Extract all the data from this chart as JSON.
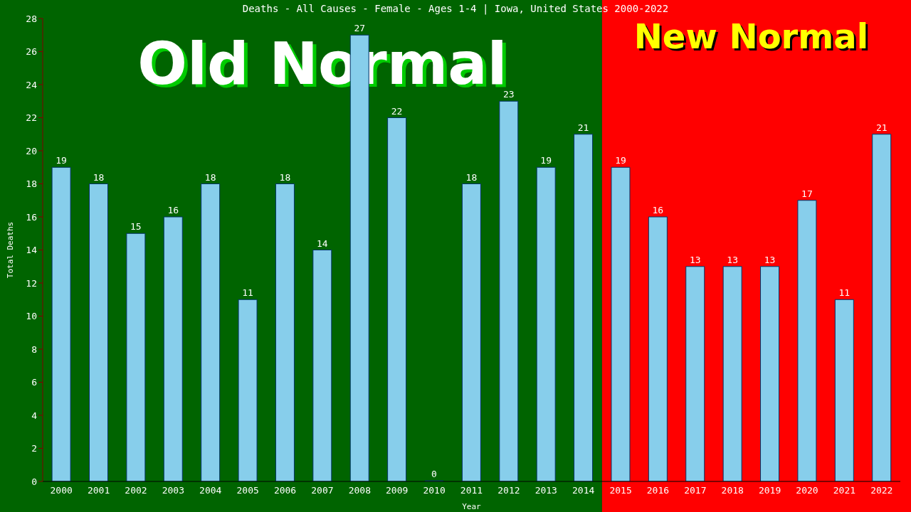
{
  "chart_data": {
    "type": "bar",
    "title": "Deaths - All Causes - Female - Ages 1-4 | Iowa, United States 2000-2022",
    "xlabel": "Year",
    "ylabel": "Total Deaths",
    "categories": [
      "2000",
      "2001",
      "2002",
      "2003",
      "2004",
      "2005",
      "2006",
      "2007",
      "2008",
      "2009",
      "2010",
      "2011",
      "2012",
      "2013",
      "2014",
      "2015",
      "2016",
      "2017",
      "2018",
      "2019",
      "2020",
      "2021",
      "2022"
    ],
    "values": [
      19,
      18,
      15,
      16,
      18,
      11,
      18,
      14,
      27,
      22,
      0,
      18,
      23,
      19,
      21,
      19,
      16,
      13,
      13,
      13,
      17,
      11,
      21
    ],
    "color": "#87ceeb",
    "ylim": [
      0,
      28
    ],
    "yticks": [
      0,
      2,
      4,
      6,
      8,
      10,
      12,
      14,
      16,
      18,
      20,
      22,
      24,
      26,
      28
    ],
    "data_labels": true,
    "bands": [
      {
        "axis": "x",
        "from": "2000",
        "to": "2014",
        "label": "Old Normal",
        "color": "#006400"
      },
      {
        "axis": "x",
        "from": "2015",
        "to": "2022",
        "label": "New Normal",
        "color": "#ff0000"
      }
    ]
  }
}
